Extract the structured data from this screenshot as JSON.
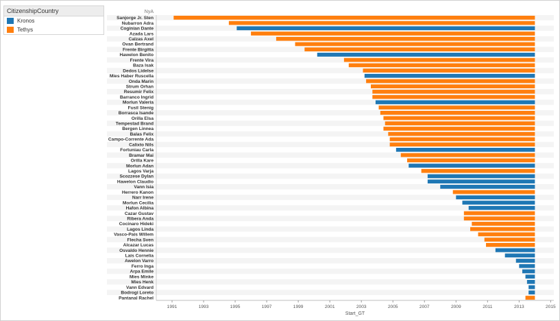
{
  "legend": {
    "title": "CitizenshipCountry",
    "items": [
      {
        "label": "Kronos",
        "color": "#1f77b4"
      },
      {
        "label": "Tethys",
        "color": "#ff7f0e"
      }
    ]
  },
  "chart_data": {
    "type": "bar",
    "orientation": "horizontal",
    "title": "",
    "row_header": "NyA",
    "xlabel": "Start_GT",
    "xlim": [
      1990.0,
      2015.2
    ],
    "end_value": 2014.0,
    "xticks": [
      1991,
      1993,
      1995,
      1997,
      1999,
      2001,
      2003,
      2005,
      2007,
      2009,
      2011,
      2013,
      2015
    ],
    "grid": false,
    "legend_position": "top-left",
    "series": [
      {
        "name": "Kronos",
        "color": "#1f77b4"
      },
      {
        "name": "Tethys",
        "color": "#ff7f0e"
      }
    ],
    "rows": [
      {
        "name": "Sanjorge Jr. Sten",
        "start": 1991.1,
        "series": "Tethys"
      },
      {
        "name": "Nubarron Adra",
        "start": 1994.6,
        "series": "Tethys"
      },
      {
        "name": "Coginian Dante",
        "start": 1995.1,
        "series": "Kronos"
      },
      {
        "name": "Azada Lars",
        "start": 1996.0,
        "series": "Tethys"
      },
      {
        "name": "Calzas Axel",
        "start": 1997.6,
        "series": "Tethys"
      },
      {
        "name": "Ovan Bertrand",
        "start": 1998.8,
        "series": "Tethys"
      },
      {
        "name": "Frente Birgitta",
        "start": 1999.4,
        "series": "Tethys"
      },
      {
        "name": "Hawelon Benito",
        "start": 2000.2,
        "series": "Kronos"
      },
      {
        "name": "Frente Vira",
        "start": 2001.9,
        "series": "Tethys"
      },
      {
        "name": "Baza Isak",
        "start": 2002.2,
        "series": "Tethys"
      },
      {
        "name": "Dedos Lidelse",
        "start": 2003.1,
        "series": "Tethys"
      },
      {
        "name": "Mies Haber Ruscella",
        "start": 2003.2,
        "series": "Kronos"
      },
      {
        "name": "Onda Marin",
        "start": 2003.3,
        "series": "Tethys"
      },
      {
        "name": "Strum Orhan",
        "start": 2003.6,
        "series": "Tethys"
      },
      {
        "name": "Resumir Felix",
        "start": 2003.7,
        "series": "Tethys"
      },
      {
        "name": "Barranco Ingrid",
        "start": 2003.7,
        "series": "Tethys"
      },
      {
        "name": "Morlun Valeria",
        "start": 2003.9,
        "series": "Kronos"
      },
      {
        "name": "Fusil Stenig",
        "start": 2004.1,
        "series": "Tethys"
      },
      {
        "name": "Borrasca Isande",
        "start": 2004.2,
        "series": "Tethys"
      },
      {
        "name": "Orilla Elsa",
        "start": 2004.4,
        "series": "Tethys"
      },
      {
        "name": "Tempestad Brand",
        "start": 2004.5,
        "series": "Tethys"
      },
      {
        "name": "Bergen Linnea",
        "start": 2004.4,
        "series": "Tethys"
      },
      {
        "name": "Balas Felix",
        "start": 2004.7,
        "series": "Tethys"
      },
      {
        "name": "Campo-Corrente Ada",
        "start": 2004.8,
        "series": "Tethys"
      },
      {
        "name": "Calixto Nils",
        "start": 2004.8,
        "series": "Tethys"
      },
      {
        "name": "Fortuniau Carla",
        "start": 2005.2,
        "series": "Kronos"
      },
      {
        "name": "Bramar Mai",
        "start": 2005.5,
        "series": "Tethys"
      },
      {
        "name": "Orilla Kare",
        "start": 2005.9,
        "series": "Tethys"
      },
      {
        "name": "Morlun Adan",
        "start": 2006.0,
        "series": "Kronos"
      },
      {
        "name": "Lagos Varja",
        "start": 2006.8,
        "series": "Tethys"
      },
      {
        "name": "Scozzese Dylan",
        "start": 2007.2,
        "series": "Kronos"
      },
      {
        "name": "Hawelon Claudio",
        "start": 2007.2,
        "series": "Kronos"
      },
      {
        "name": "Vann Isia",
        "start": 2008.0,
        "series": "Kronos"
      },
      {
        "name": "Herrero Kanon",
        "start": 2008.8,
        "series": "Tethys"
      },
      {
        "name": "Narr Irene",
        "start": 2009.0,
        "series": "Kronos"
      },
      {
        "name": "Morlun Cecilia",
        "start": 2009.4,
        "series": "Kronos"
      },
      {
        "name": "Hafon Albina",
        "start": 2009.8,
        "series": "Kronos"
      },
      {
        "name": "Cazar Gustav",
        "start": 2009.5,
        "series": "Tethys"
      },
      {
        "name": "Ribera Anda",
        "start": 2009.5,
        "series": "Tethys"
      },
      {
        "name": "Cocinaro Hideki",
        "start": 2010.0,
        "series": "Tethys"
      },
      {
        "name": "Lagos Linda",
        "start": 2009.9,
        "series": "Tethys"
      },
      {
        "name": "Vasco-Pais Willem",
        "start": 2010.4,
        "series": "Tethys"
      },
      {
        "name": "Flecha Sven",
        "start": 2010.8,
        "series": "Tethys"
      },
      {
        "name": "Alcazar Lucas",
        "start": 2010.9,
        "series": "Tethys"
      },
      {
        "name": "Osvaldo Hennie",
        "start": 2011.5,
        "series": "Kronos"
      },
      {
        "name": "Lais Cornelia",
        "start": 2012.1,
        "series": "Kronos"
      },
      {
        "name": "Awelon Varro",
        "start": 2012.8,
        "series": "Kronos"
      },
      {
        "name": "Ferro Inga",
        "start": 2013.0,
        "series": "Kronos"
      },
      {
        "name": "Arpa Emile",
        "start": 2013.2,
        "series": "Kronos"
      },
      {
        "name": "Mies Minke",
        "start": 2013.4,
        "series": "Kronos"
      },
      {
        "name": "Mies Henk",
        "start": 2013.5,
        "series": "Kronos"
      },
      {
        "name": "Vann Edvard",
        "start": 2013.6,
        "series": "Kronos"
      },
      {
        "name": "Bodrogi Loreto",
        "start": 2013.6,
        "series": "Kronos"
      },
      {
        "name": "Pantanal Rachel",
        "start": 2013.4,
        "series": "Tethys"
      }
    ]
  }
}
